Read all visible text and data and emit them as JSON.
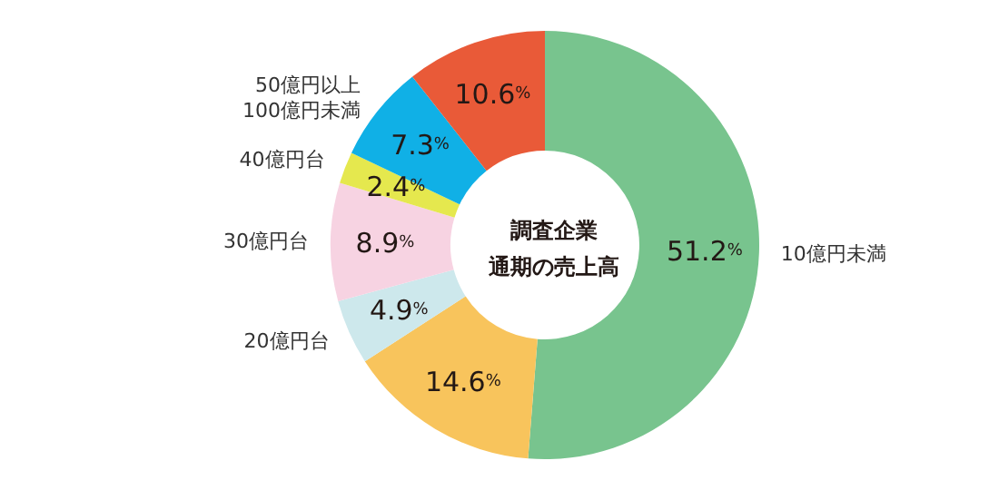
{
  "chart_data": {
    "type": "donut",
    "title": "調査企業",
    "subtitle": "通期の売上高",
    "value_labels": [
      "51.2%",
      "14.6%",
      "4.9%",
      "8.9%",
      "2.4%",
      "7.3%",
      "10.6%"
    ],
    "categories": [
      "10億円未満",
      null,
      "20億円台",
      "30億円台",
      "40億円台",
      "50億円以上\n100億円未満",
      null
    ],
    "values": [
      51.2,
      14.6,
      4.9,
      8.9,
      2.4,
      7.3,
      10.6
    ],
    "colors": [
      "#78c48e",
      "#f8c45c",
      "#cde8ec",
      "#f7d3e2",
      "#e5e84e",
      "#10b0e6",
      "#e95a38"
    ],
    "legend": false
  }
}
